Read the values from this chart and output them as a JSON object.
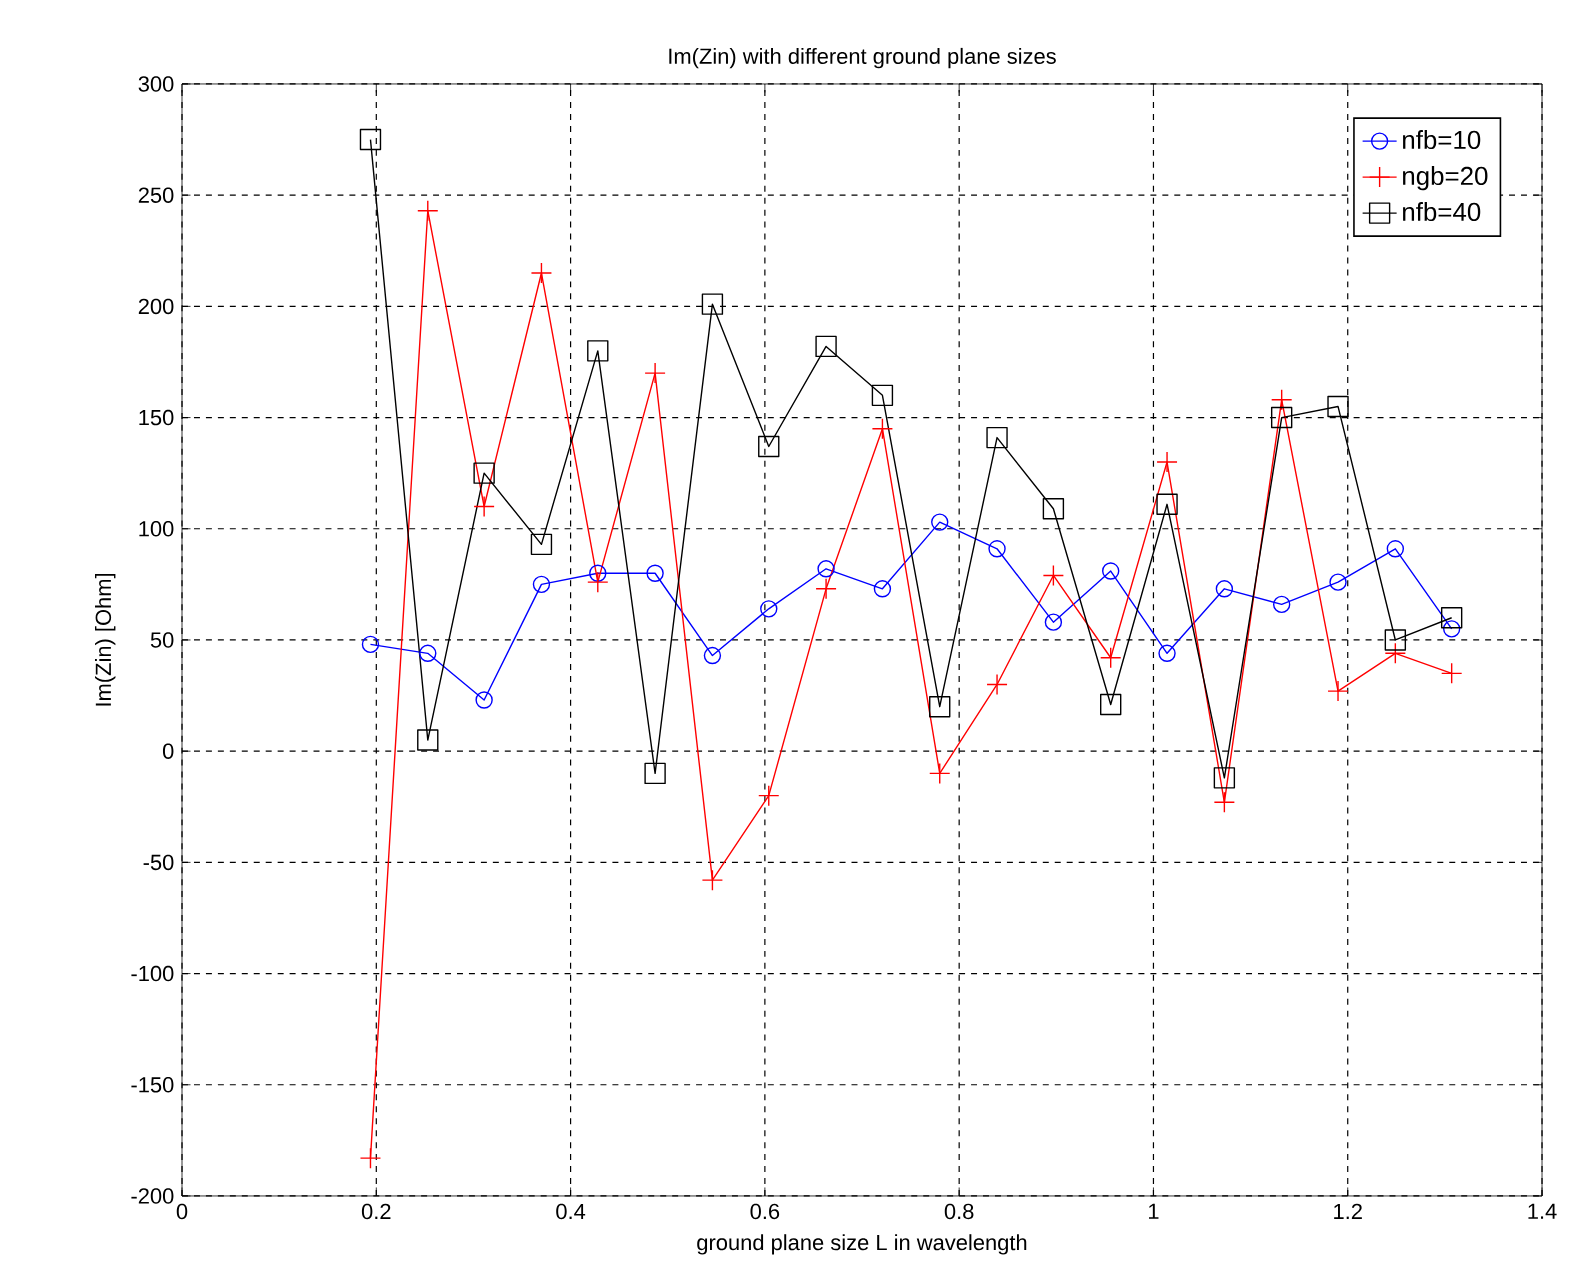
{
  "chart_data": {
    "type": "line",
    "title": "Im(Zin) with different ground plane sizes",
    "xlabel": "ground plane size L in wavelength",
    "ylabel": "Im(Zin) [Ohm]",
    "x": [
      0.194,
      0.253,
      0.311,
      0.37,
      0.428,
      0.487,
      0.546,
      0.604,
      0.663,
      0.721,
      0.78,
      0.839,
      0.897,
      0.956,
      1.014,
      1.073,
      1.132,
      1.19,
      1.249,
      1.307
    ],
    "series": [
      {
        "name": "nfb=10",
        "color": "#0000ff",
        "marker": "circle",
        "values": [
          48,
          44,
          23,
          75,
          80,
          80,
          43,
          64,
          82,
          73,
          103,
          91,
          58,
          81,
          44,
          73,
          66,
          76,
          91,
          55
        ]
      },
      {
        "name": "ngb=20",
        "color": "#ff0000",
        "marker": "cross",
        "values": [
          -183,
          243,
          110,
          215,
          76,
          170,
          -58,
          -20,
          73,
          145,
          -10,
          30,
          79,
          42,
          130,
          -23,
          158,
          27,
          44,
          35
        ]
      },
      {
        "name": "nfb=40",
        "color": "#000000",
        "marker": "square",
        "values": [
          275,
          5,
          125,
          93,
          180,
          -10,
          201,
          137,
          182,
          160,
          20,
          141,
          109,
          21,
          111,
          -12,
          150,
          155,
          50,
          60
        ]
      }
    ],
    "xlim": [
      0,
      1.4
    ],
    "xticks": [
      0,
      0.2,
      0.4,
      0.6,
      0.8,
      1,
      1.2,
      1.4
    ],
    "ylim": [
      -200,
      300
    ],
    "yticks": [
      -200,
      -150,
      -100,
      -50,
      0,
      50,
      100,
      150,
      200,
      250,
      300
    ],
    "grid": true,
    "legend": "top right"
  }
}
